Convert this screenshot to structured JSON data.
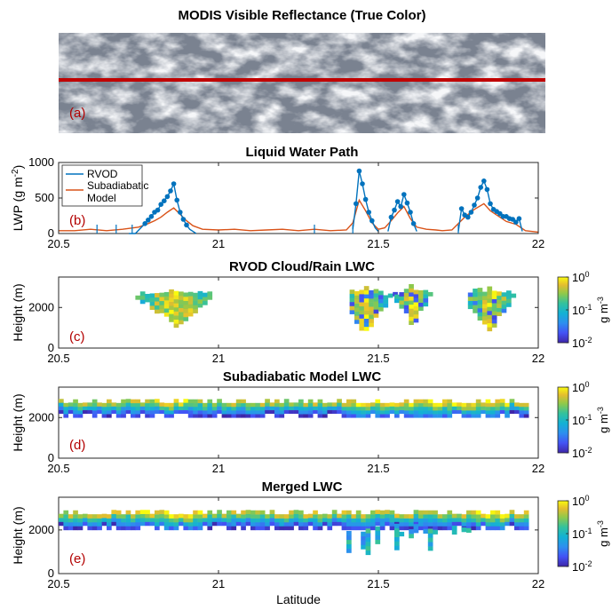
{
  "figure": {
    "colors": {
      "rvod": "#0072BD",
      "subadiabatic": "#D95319",
      "track": "#c00000",
      "panel_letter": "#b30000"
    }
  },
  "chart_data": [
    {
      "type": "image",
      "panel": "(a)",
      "title": "MODIS Visible Reflectance (True Color)"
    },
    {
      "type": "line",
      "panel": "(b)",
      "title": "Liquid Water Path",
      "ylabel": "LWP (g m-2)",
      "ylabel_base": "LWP (g m",
      "ylabel_exp": "-2",
      "ylabel_tail": ")",
      "xlim": [
        20.5,
        22
      ],
      "ylim": [
        0,
        1000
      ],
      "xticks": [
        "20.5",
        "21",
        "21.5",
        "22"
      ],
      "yticks": [
        "0",
        "500",
        "1000"
      ],
      "legend": {
        "placement": "top-left",
        "entries": [
          "RVOD",
          "Subadiabatic",
          "Model"
        ]
      },
      "series": [
        {
          "name": "RVOD",
          "color": "#0072BD",
          "marker": "o",
          "points": [
            [
              20.72,
              0
            ],
            [
              20.74,
              0
            ],
            [
              20.77,
              140
            ],
            [
              20.78,
              190
            ],
            [
              20.79,
              240
            ],
            [
              20.8,
              300
            ],
            [
              20.81,
              330
            ],
            [
              20.82,
              410
            ],
            [
              20.83,
              460
            ],
            [
              20.84,
              520
            ],
            [
              20.85,
              600
            ],
            [
              20.86,
              700
            ],
            [
              20.87,
              470
            ],
            [
              20.88,
              300
            ],
            [
              20.89,
              200
            ],
            [
              20.9,
              120
            ],
            [
              20.91,
              60
            ],
            [
              20.92,
              30
            ],
            [
              20.93,
              0
            ]
          ],
          "segments": [
            [
              [
                21.42,
                60
              ],
              [
                21.43,
                420
              ],
              [
                21.44,
                880
              ],
              [
                21.45,
                700
              ],
              [
                21.46,
                480
              ],
              [
                21.47,
                300
              ],
              [
                21.48,
                180
              ],
              [
                21.49,
                80
              ],
              [
                21.5,
                30
              ]
            ],
            [
              [
                21.53,
                30
              ],
              [
                21.54,
                230
              ],
              [
                21.55,
                330
              ],
              [
                21.56,
                450
              ],
              [
                21.57,
                380
              ],
              [
                21.58,
                550
              ],
              [
                21.59,
                430
              ],
              [
                21.6,
                300
              ],
              [
                21.61,
                140
              ],
              [
                21.62,
                30
              ]
            ],
            [
              [
                21.75,
                30
              ],
              [
                21.76,
                350
              ],
              [
                21.77,
                260
              ],
              [
                21.78,
                230
              ],
              [
                21.79,
                300
              ],
              [
                21.8,
                400
              ],
              [
                21.81,
                500
              ],
              [
                21.82,
                650
              ],
              [
                21.83,
                740
              ],
              [
                21.84,
                620
              ],
              [
                21.85,
                420
              ],
              [
                21.86,
                340
              ],
              [
                21.87,
                310
              ],
              [
                21.88,
                280
              ],
              [
                21.89,
                240
              ],
              [
                21.9,
                240
              ],
              [
                21.91,
                210
              ],
              [
                21.92,
                200
              ],
              [
                21.93,
                160
              ],
              [
                21.94,
                210
              ],
              [
                21.95,
                30
              ]
            ]
          ]
        },
        {
          "name": "Subadiabatic Model",
          "color": "#D95319",
          "points": [
            [
              20.5,
              40
            ],
            [
              20.55,
              40
            ],
            [
              20.6,
              60
            ],
            [
              20.65,
              40
            ],
            [
              20.7,
              60
            ],
            [
              20.75,
              90
            ],
            [
              20.78,
              140
            ],
            [
              20.8,
              180
            ],
            [
              20.82,
              230
            ],
            [
              20.84,
              300
            ],
            [
              20.86,
              360
            ],
            [
              20.88,
              270
            ],
            [
              20.9,
              180
            ],
            [
              20.92,
              110
            ],
            [
              20.95,
              60
            ],
            [
              21.0,
              50
            ],
            [
              21.05,
              60
            ],
            [
              21.1,
              40
            ],
            [
              21.15,
              50
            ],
            [
              21.2,
              60
            ],
            [
              21.25,
              40
            ],
            [
              21.3,
              60
            ],
            [
              21.35,
              40
            ],
            [
              21.4,
              50
            ],
            [
              21.42,
              150
            ],
            [
              21.44,
              470
            ],
            [
              21.46,
              320
            ],
            [
              21.48,
              150
            ],
            [
              21.5,
              60
            ],
            [
              21.52,
              80
            ],
            [
              21.54,
              180
            ],
            [
              21.56,
              290
            ],
            [
              21.58,
              380
            ],
            [
              21.6,
              210
            ],
            [
              21.62,
              90
            ],
            [
              21.65,
              60
            ],
            [
              21.68,
              50
            ],
            [
              21.7,
              40
            ],
            [
              21.73,
              50
            ],
            [
              21.75,
              140
            ],
            [
              21.77,
              230
            ],
            [
              21.8,
              340
            ],
            [
              21.83,
              420
            ],
            [
              21.85,
              320
            ],
            [
              21.88,
              230
            ],
            [
              21.9,
              170
            ],
            [
              21.93,
              130
            ],
            [
              21.96,
              40
            ],
            [
              22.0,
              20
            ]
          ]
        }
      ]
    },
    {
      "type": "heatmap",
      "panel": "(c)",
      "title": "RVOD Cloud/Rain LWC",
      "ylabel": "Height (m)",
      "xlim": [
        20.5,
        22
      ],
      "ylim": [
        0,
        3500
      ],
      "xticks": [
        "20.5",
        "21",
        "21.5",
        "22"
      ],
      "yticks": [
        "0",
        "2000"
      ],
      "colorbar": {
        "scale": "log",
        "range": [
          0.01,
          1
        ],
        "label": "g m-3",
        "label_base": "g m",
        "label_exp": "-3",
        "ticks": [
          {
            "base": "10",
            "exp": "0"
          },
          {
            "base": "10",
            "exp": "-1"
          },
          {
            "base": "10",
            "exp": "-2"
          }
        ]
      },
      "regions": [
        {
          "xrange": [
            20.74,
            20.97
          ],
          "ztop": 3000,
          "zbot_center": 900,
          "x_center": 20.86
        },
        {
          "xrange": [
            21.41,
            21.55
          ],
          "ztop": 3100,
          "zbot_center": 600,
          "x_center": 21.45
        },
        {
          "xrange": [
            21.55,
            21.67
          ],
          "ztop": 3100,
          "zbot_center": 1000,
          "x_center": 21.6
        },
        {
          "xrange": [
            21.78,
            21.92
          ],
          "ztop": 3100,
          "zbot_center": 700,
          "x_center": 21.84
        }
      ]
    },
    {
      "type": "heatmap",
      "panel": "(d)",
      "title": "Subadiabatic Model LWC",
      "ylabel": "Height (m)",
      "xlim": [
        20.5,
        22
      ],
      "ylim": [
        0,
        3500
      ],
      "xticks": [
        "20.5",
        "21",
        "21.5",
        "22"
      ],
      "yticks": [
        "0",
        "2000"
      ],
      "colorbar": {
        "scale": "log",
        "range": [
          0.01,
          1
        ],
        "label": "g m-3",
        "label_base": "g m",
        "label_exp": "-3",
        "ticks": [
          {
            "base": "10",
            "exp": "0"
          },
          {
            "base": "10",
            "exp": "-1"
          },
          {
            "base": "10",
            "exp": "-2"
          }
        ]
      },
      "layer": {
        "xrange": [
          20.5,
          21.97
        ],
        "base_m": 2000,
        "top_m": 2900
      }
    },
    {
      "type": "heatmap",
      "panel": "(e)",
      "title": "Merged LWC",
      "ylabel": "Height (m)",
      "xlabel": "Latitude",
      "xlim": [
        20.5,
        22
      ],
      "ylim": [
        0,
        3500
      ],
      "xticks": [
        "20.5",
        "21",
        "21.5",
        "22"
      ],
      "yticks": [
        "0",
        "2000"
      ],
      "colorbar": {
        "scale": "log",
        "range": [
          0.01,
          1
        ],
        "label": "g m-3",
        "label_base": "g m",
        "label_exp": "-3",
        "ticks": [
          {
            "base": "10",
            "exp": "0"
          },
          {
            "base": "10",
            "exp": "-1"
          },
          {
            "base": "10",
            "exp": "-2"
          }
        ]
      },
      "layer": {
        "xrange": [
          20.5,
          21.97
        ],
        "base_m": 2000,
        "top_m": 2900
      },
      "rain_regions": [
        {
          "xrange": [
            21.4,
            21.52
          ],
          "zbot_min": 800
        },
        {
          "xrange": [
            21.55,
            21.68
          ],
          "zbot_min": 1000
        },
        {
          "xrange": [
            21.72,
            21.8
          ],
          "zbot_min": 1200
        }
      ]
    }
  ]
}
